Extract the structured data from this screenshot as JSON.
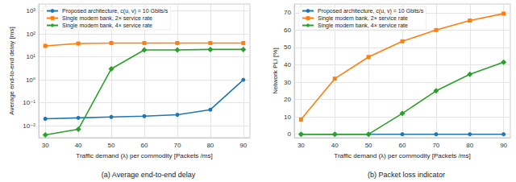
{
  "chart_data": [
    {
      "type": "line",
      "subtitle": "(a) Average end-to-end delay",
      "x_label": "Traffic demand (λ) per commodity [Packets /ms]",
      "y_label": "Average end-to-end delay [ms]",
      "log": "y",
      "grid": true,
      "legend": "upper left",
      "x": [
        30,
        40,
        50,
        60,
        70,
        80,
        90
      ],
      "xlim": [
        28,
        92
      ],
      "xticks": [
        30,
        40,
        50,
        60,
        70,
        80,
        90
      ],
      "ylim": [
        0.003,
        2000
      ],
      "yticks": [
        {
          "value": 0.01,
          "label": "10⁻²"
        },
        {
          "value": 0.1,
          "label": "10⁻¹"
        },
        {
          "value": 1,
          "label": "10⁰"
        },
        {
          "value": 10,
          "label": "10¹"
        },
        {
          "value": 100,
          "label": "10²"
        },
        {
          "value": 1000,
          "label": "10³"
        }
      ],
      "series": [
        {
          "name": "Proposed architecture, c(u, v) = 10 Gbits/s",
          "color": "#1f77b4",
          "marker": "circle",
          "values": [
            0.02,
            0.022,
            0.024,
            0.026,
            0.03,
            0.05,
            1
          ]
        },
        {
          "name": "Single modem bank, 2× service rate",
          "color": "#ff7f0e",
          "marker": "square",
          "values": [
            30,
            38,
            40,
            40,
            40,
            40,
            40
          ]
        },
        {
          "name": "Single modem bank, 4× service rate",
          "color": "#2ca02c",
          "marker": "diamond",
          "values": [
            0.004,
            0.007,
            3,
            20,
            20,
            21,
            21
          ]
        }
      ]
    },
    {
      "type": "line",
      "subtitle": "(b) Packet loss indicator",
      "x_label": "Traffic demand (λ) per commodity [Packets /ms]",
      "y_label": "Network PLI [%]",
      "grid": true,
      "legend": "upper left",
      "x": [
        30,
        40,
        50,
        60,
        70,
        80,
        90
      ],
      "xlim": [
        28,
        92
      ],
      "xticks": [
        30,
        40,
        50,
        60,
        70,
        80,
        90
      ],
      "ylim": [
        -2,
        75
      ],
      "yticks": [
        0,
        10,
        20,
        30,
        40,
        50,
        60,
        70
      ],
      "series": [
        {
          "name": "Proposed architecture, c(u, v) = 10 Gbits/s",
          "color": "#1f77b4",
          "marker": "circle",
          "values": [
            0,
            0,
            0,
            0,
            0,
            0,
            0
          ]
        },
        {
          "name": "Single modem bank, 2× service rate",
          "color": "#ff7f0e",
          "marker": "square",
          "values": [
            8.5,
            32,
            44.5,
            53.5,
            60,
            65.5,
            69.5
          ]
        },
        {
          "name": "Single modem bank, 4× service rate",
          "color": "#2ca02c",
          "marker": "diamond",
          "values": [
            0,
            0,
            0,
            12,
            25,
            34.5,
            41.5
          ]
        }
      ]
    }
  ]
}
